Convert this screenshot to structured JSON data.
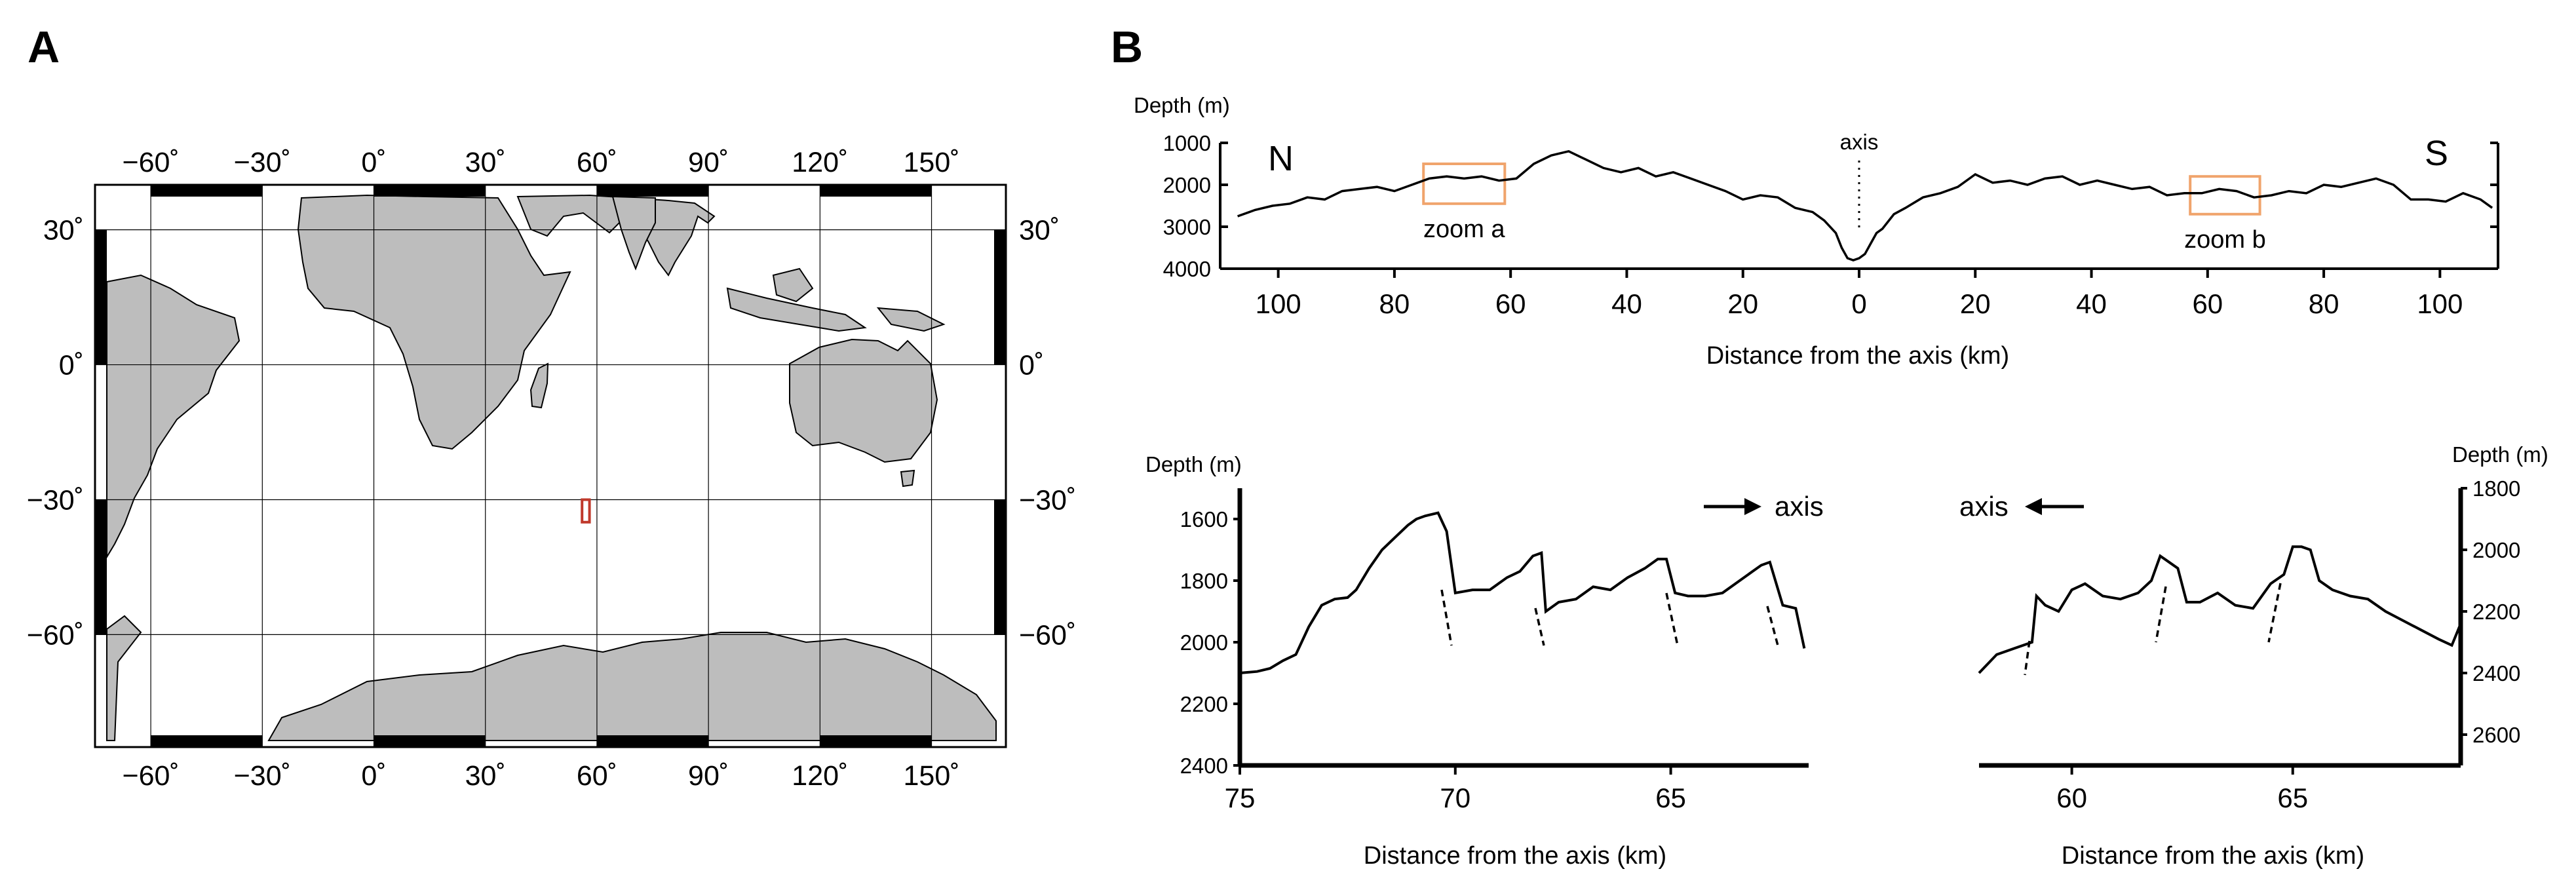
{
  "panel_labels": {
    "a": "A",
    "b": "B"
  },
  "colors": {
    "land": "#bdbdbd",
    "coastline": "#000000",
    "study_area_box": "#c0392b",
    "zoom_box": "#f0a46c",
    "profile_line": "#000000"
  },
  "map": {
    "projection": "equirectangular",
    "lon_range": [
      -75,
      170
    ],
    "lat_range": [
      -85,
      40
    ],
    "lon_ticks": [
      "−60˚",
      "−30˚",
      "0˚",
      "30˚",
      "60˚",
      "90˚",
      "120˚",
      "150˚"
    ],
    "lon_tick_values": [
      -60,
      -30,
      0,
      30,
      60,
      90,
      120,
      150
    ],
    "lat_ticks": [
      "30˚",
      "0˚",
      "−30˚",
      "−60˚"
    ],
    "lat_tick_values": [
      30,
      0,
      -30,
      -60
    ],
    "study_area": {
      "lon": [
        56,
        58
      ],
      "lat": [
        -30,
        -35
      ]
    }
  },
  "chart_data": [
    {
      "type": "line",
      "id": "full-profile",
      "ylabel": "Depth (m)",
      "xlabel": "Distance from the axis (km)",
      "xlim": [
        -110,
        110
      ],
      "ylim": [
        4000,
        1000
      ],
      "x_tick_labels": [
        "100",
        "80",
        "60",
        "40",
        "20",
        "0",
        "20",
        "40",
        "60",
        "80",
        "100"
      ],
      "x_tick_values": [
        -100,
        -80,
        -60,
        -40,
        -20,
        0,
        20,
        40,
        60,
        80,
        100
      ],
      "y_tick_labels": [
        "1000",
        "2000",
        "3000",
        "4000"
      ],
      "y_tick_values": [
        1000,
        2000,
        3000,
        4000
      ],
      "annotations": {
        "north": "N",
        "south": "S",
        "axis": "axis",
        "zoom_a": "zoom a",
        "zoom_b": "zoom b"
      },
      "zoom_boxes": [
        {
          "name": "zoom a",
          "x": [
            -75,
            -61
          ],
          "y": [
            1500,
            2450
          ]
        },
        {
          "name": "zoom b",
          "x": [
            57,
            69
          ],
          "y": [
            1800,
            2700
          ]
        }
      ],
      "series": [
        {
          "x": [
            -107,
            -104,
            -101,
            -98,
            -95,
            -92,
            -89,
            -86,
            -83,
            -80,
            -77,
            -74,
            -71,
            -68,
            -65,
            -62,
            -59,
            -56,
            -53,
            -50,
            -47,
            -44,
            -41,
            -38,
            -35,
            -32,
            -29,
            -26,
            -23,
            -20,
            -17,
            -14,
            -11,
            -8,
            -6,
            -4,
            -3,
            -2,
            -1,
            0,
            1,
            2,
            3,
            4,
            6,
            8,
            11,
            14,
            17,
            20,
            23,
            26,
            29,
            32,
            35,
            38,
            41,
            44,
            47,
            50,
            53,
            56,
            59,
            62,
            65,
            68,
            71,
            74,
            77,
            80,
            83,
            86,
            89,
            92,
            95,
            98,
            101,
            104,
            107,
            109
          ],
          "y": [
            2750,
            2600,
            2500,
            2450,
            2300,
            2350,
            2150,
            2100,
            2050,
            2150,
            2000,
            1850,
            1800,
            1850,
            1800,
            1900,
            1850,
            1500,
            1300,
            1200,
            1400,
            1600,
            1700,
            1600,
            1800,
            1700,
            1850,
            2000,
            2150,
            2350,
            2250,
            2300,
            2550,
            2650,
            2850,
            3150,
            3500,
            3750,
            3800,
            3750,
            3650,
            3400,
            3150,
            3050,
            2700,
            2550,
            2300,
            2200,
            2050,
            1750,
            1950,
            1900,
            2000,
            1850,
            1800,
            2000,
            1900,
            2000,
            2100,
            2050,
            2250,
            2200,
            2200,
            2100,
            2150,
            2300,
            2250,
            2150,
            2200,
            2000,
            2050,
            1950,
            1850,
            2000,
            2350,
            2350,
            2400,
            2200,
            2350,
            2550
          ]
        }
      ]
    },
    {
      "type": "line",
      "id": "zoom-a",
      "ylabel": "Depth (m)",
      "xlabel": "Distance from the axis (km)",
      "xlim": [
        75,
        61.8
      ],
      "ylim": [
        2400,
        1500
      ],
      "x_tick_labels": [
        "75",
        "70",
        "65"
      ],
      "x_tick_values": [
        75,
        70,
        65
      ],
      "y_tick_labels": [
        "1600",
        "1800",
        "2000",
        "2200",
        "2400"
      ],
      "y_tick_values": [
        1600,
        1800,
        2000,
        2200,
        2400
      ],
      "direction_label": "axis",
      "direction": "right",
      "series": [
        {
          "x": [
            75,
            74.6,
            74.3,
            74,
            73.7,
            73.4,
            73.1,
            72.8,
            72.5,
            72.3,
            72,
            71.7,
            71.4,
            71.1,
            70.9,
            70.7,
            70.4,
            70.2,
            70.0,
            69.6,
            69.2,
            68.8,
            68.5,
            68.2,
            68.0,
            67.9,
            67.6,
            67.2,
            66.8,
            66.4,
            66.0,
            65.6,
            65.3,
            65.1,
            64.9,
            64.6,
            64.2,
            63.8,
            63.4,
            63.1,
            62.9,
            62.7,
            62.4,
            62.1,
            61.9
          ],
          "y": [
            2100,
            2095,
            2085,
            2060,
            2040,
            1950,
            1880,
            1860,
            1855,
            1830,
            1760,
            1700,
            1660,
            1620,
            1600,
            1590,
            1580,
            1640,
            1840,
            1830,
            1830,
            1790,
            1770,
            1720,
            1710,
            1900,
            1870,
            1860,
            1820,
            1830,
            1790,
            1760,
            1730,
            1730,
            1840,
            1850,
            1850,
            1840,
            1800,
            1770,
            1750,
            1740,
            1880,
            1890,
            2020
          ]
        }
      ]
    },
    {
      "type": "line",
      "id": "zoom-b",
      "ylabel": "Depth (m)",
      "xlabel": "Distance from the axis (km)",
      "xlim": [
        57.9,
        68.8
      ],
      "ylim": [
        2700,
        1800
      ],
      "x_tick_labels": [
        "60",
        "65"
      ],
      "x_tick_values": [
        60,
        65
      ],
      "y_tick_labels": [
        "1800",
        "2000",
        "2200",
        "2400",
        "2600"
      ],
      "y_tick_values": [
        1800,
        2000,
        2200,
        2400,
        2600
      ],
      "direction_label": "axis",
      "direction": "left",
      "series": [
        {
          "x": [
            57.9,
            58.3,
            58.7,
            59.1,
            59.2,
            59.4,
            59.7,
            60.0,
            60.3,
            60.7,
            61.1,
            61.5,
            61.8,
            62.0,
            62.2,
            62.4,
            62.6,
            62.9,
            63.3,
            63.7,
            64.1,
            64.5,
            64.8,
            65.0,
            65.2,
            65.4,
            65.6,
            65.9,
            66.3,
            66.7,
            67.1,
            67.5,
            67.9,
            68.3,
            68.6,
            68.8
          ],
          "y": [
            2400,
            2340,
            2320,
            2300,
            2150,
            2180,
            2200,
            2130,
            2110,
            2150,
            2160,
            2140,
            2100,
            2020,
            2040,
            2060,
            2170,
            2170,
            2140,
            2180,
            2190,
            2110,
            2080,
            1990,
            1990,
            2000,
            2100,
            2130,
            2150,
            2160,
            2200,
            2230,
            2260,
            2290,
            2310,
            2240
          ]
        }
      ]
    }
  ]
}
